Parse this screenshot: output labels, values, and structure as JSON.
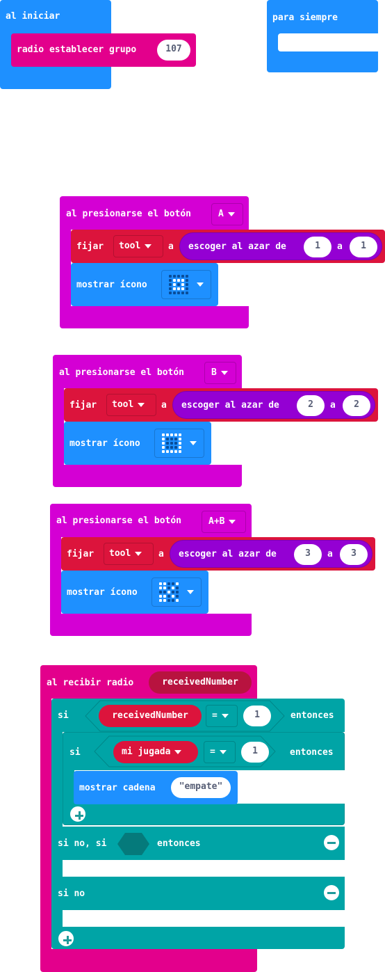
{
  "colors": {
    "basic_blue": "#1E90FF",
    "radio_pink": "#E3008C",
    "input_magenta": "#D400D4",
    "variable_red": "#DC143C",
    "math_purple": "#9400D3",
    "logic_teal": "#00A4A6"
  },
  "on_start": {
    "label": "al iniciar",
    "radio_set_group": {
      "label": "radio establecer grupo",
      "value": "107"
    }
  },
  "forever": {
    "label": "para siempre"
  },
  "button_a": {
    "event_label": "al presionarse el botón",
    "button": "A",
    "set_label": "fijar",
    "variable": "tool",
    "to_label": "a",
    "random_label": "escoger al azar de",
    "from_value": "1",
    "between_label": "a",
    "to_value": "1",
    "show_icon_label": "mostrar ícono",
    "icon_name": "small-square-icon"
  },
  "button_b": {
    "event_label": "al presionarse el botón",
    "button": "B",
    "set_label": "fijar",
    "variable": "tool",
    "to_label": "a",
    "random_label": "escoger al azar de",
    "from_value": "2",
    "between_label": "a",
    "to_value": "2",
    "show_icon_label": "mostrar ícono",
    "icon_name": "square-icon"
  },
  "button_ab": {
    "event_label": "al presionarse el botón",
    "button": "A+B",
    "set_label": "fijar",
    "variable": "tool",
    "to_label": "a",
    "random_label": "escoger al azar de",
    "from_value": "3",
    "between_label": "a",
    "to_value": "3",
    "show_icon_label": "mostrar ícono",
    "icon_name": "scissors-icon"
  },
  "radio_received": {
    "event_label": "al recibir radio",
    "param": "receivedNumber",
    "if_label": "si",
    "cond1_var": "receivedNumber",
    "cond1_op": "=",
    "cond1_value": "1",
    "then_label": "entonces",
    "inner_if_label": "si",
    "cond2_var": "mi jugada",
    "cond2_op": "=",
    "cond2_value": "1",
    "inner_then_label": "entonces",
    "show_string_label": "mostrar cadena",
    "show_string_value": "\"empate\"",
    "else_if_label": "si no, si",
    "else_if_then_label": "entonces",
    "else_label": "si no"
  }
}
